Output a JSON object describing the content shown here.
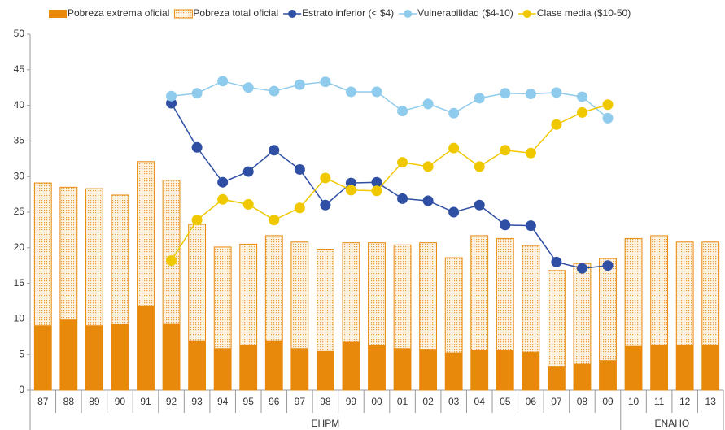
{
  "chart_data": {
    "type": "bar_line",
    "categories": [
      "87",
      "88",
      "89",
      "90",
      "91",
      "92",
      "93",
      "94",
      "95",
      "96",
      "97",
      "98",
      "99",
      "00",
      "01",
      "02",
      "03",
      "04",
      "05",
      "06",
      "07",
      "08",
      "09",
      "10",
      "11",
      "12",
      "13"
    ],
    "groups": [
      {
        "label": "EHPM",
        "span": 23
      },
      {
        "label": "ENAHO",
        "span": 4
      }
    ],
    "ylim": [
      0,
      50
    ],
    "yticks": [
      0,
      5,
      10,
      15,
      20,
      25,
      30,
      35,
      40,
      45,
      50
    ],
    "grid": false,
    "legend": "top",
    "series": [
      {
        "name": "Pobreza extrema oficial",
        "type": "bar",
        "fill": "solid",
        "color": "#e8890c",
        "values": [
          9.1,
          9.9,
          9.1,
          9.3,
          11.9,
          9.4,
          7.0,
          5.9,
          6.4,
          7.0,
          5.9,
          5.5,
          6.8,
          6.3,
          5.9,
          5.8,
          5.3,
          5.7,
          5.7,
          5.4,
          3.4,
          3.7,
          4.2,
          6.2,
          6.4,
          6.4,
          6.4
        ]
      },
      {
        "name": "Pobreza total oficial",
        "type": "bar",
        "fill": "dotted",
        "color": "#e8890c",
        "values": [
          29.1,
          28.5,
          28.3,
          27.4,
          32.1,
          29.5,
          23.3,
          20.1,
          20.5,
          21.7,
          20.8,
          19.8,
          20.7,
          20.7,
          20.4,
          20.7,
          18.6,
          21.7,
          21.3,
          20.3,
          16.8,
          17.8,
          18.5,
          21.3,
          21.7,
          20.8,
          20.8
        ]
      },
      {
        "name": "Estrato inferior (< $4)",
        "type": "line",
        "color": "#2e4fa3",
        "values": [
          null,
          null,
          null,
          null,
          null,
          40.3,
          34.1,
          29.2,
          30.7,
          33.7,
          31.0,
          26.0,
          29.1,
          29.2,
          26.9,
          26.6,
          25.0,
          26.0,
          23.2,
          23.1,
          18.0,
          17.1,
          17.5,
          null,
          null,
          null,
          null
        ]
      },
      {
        "name": "Vulnerabilidad ($4-10)",
        "type": "line",
        "color": "#8fcbec",
        "values": [
          null,
          null,
          null,
          null,
          null,
          41.3,
          41.7,
          43.4,
          42.5,
          42.0,
          42.9,
          43.3,
          41.9,
          41.9,
          39.2,
          40.2,
          38.9,
          41.0,
          41.7,
          41.6,
          41.8,
          41.2,
          38.2,
          null,
          null,
          null,
          null
        ]
      },
      {
        "name": "Clase media ($10-50)",
        "type": "line",
        "color": "#f0c800",
        "values": [
          null,
          null,
          null,
          null,
          null,
          18.2,
          23.9,
          26.8,
          26.1,
          23.9,
          25.6,
          29.8,
          28.1,
          28.0,
          32.0,
          31.4,
          34.0,
          31.4,
          33.7,
          33.3,
          37.3,
          39.0,
          40.1,
          null,
          null,
          null,
          null
        ]
      }
    ]
  }
}
